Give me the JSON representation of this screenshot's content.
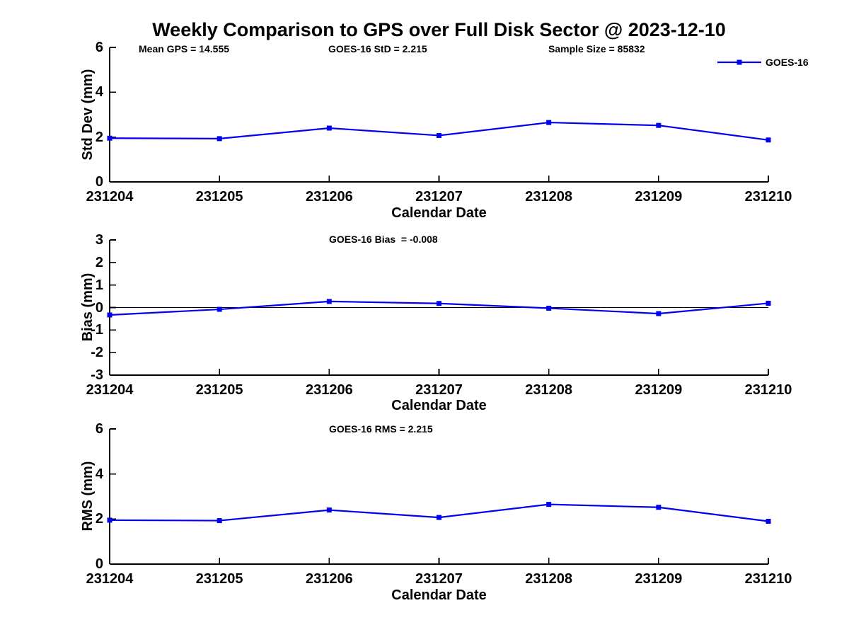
{
  "title": "Weekly Comparison to GPS over Full Disk Sector @ 2023-12-10",
  "annotations": {
    "mean_gps": "Mean GPS = 14.555",
    "std": "GOES-16 StD = 2.215",
    "sample_size": "Sample Size = 85832",
    "bias": "GOES-16 Bias  = -0.008",
    "rms": "GOES-16 RMS = 2.215"
  },
  "legend": {
    "label": "GOES-16",
    "marker": "square",
    "position": "top-right",
    "color": "#0000EE"
  },
  "colors": {
    "line": "#0000EE",
    "axis": "#000000",
    "background": "#FFFFFF"
  },
  "chart_data": [
    {
      "type": "line",
      "series_name": "GOES-16",
      "categories": [
        "231204",
        "231205",
        "231206",
        "231207",
        "231208",
        "231209",
        "231210"
      ],
      "values": [
        1.95,
        1.93,
        2.4,
        2.07,
        2.65,
        2.52,
        1.87
      ],
      "xlabel": "Calendar Date",
      "ylabel": "Std Dev (mm)",
      "ylim": [
        0,
        6
      ],
      "yticks": [
        0,
        2,
        4,
        6
      ],
      "zero_line": false,
      "grid": false,
      "marker": "square",
      "line_color": "#0000EE"
    },
    {
      "type": "line",
      "series_name": "GOES-16",
      "categories": [
        "231204",
        "231205",
        "231206",
        "231207",
        "231208",
        "231209",
        "231210"
      ],
      "values": [
        -0.33,
        -0.08,
        0.27,
        0.18,
        -0.03,
        -0.27,
        0.19
      ],
      "xlabel": "Calendar Date",
      "ylabel": "Bias (mm)",
      "ylim": [
        -3,
        3
      ],
      "yticks": [
        3,
        2,
        1,
        0,
        -1,
        -2,
        -3
      ],
      "zero_line": true,
      "grid": false,
      "marker": "square",
      "line_color": "#0000EE"
    },
    {
      "type": "line",
      "series_name": "GOES-16",
      "categories": [
        "231204",
        "231205",
        "231206",
        "231207",
        "231208",
        "231209",
        "231210"
      ],
      "values": [
        1.95,
        1.93,
        2.4,
        2.07,
        2.65,
        2.52,
        1.9
      ],
      "xlabel": "Calendar Date",
      "ylabel": "RMS (mm)",
      "ylim": [
        0,
        6
      ],
      "yticks": [
        0,
        2,
        4,
        6
      ],
      "zero_line": false,
      "grid": false,
      "marker": "square",
      "line_color": "#0000EE"
    }
  ]
}
